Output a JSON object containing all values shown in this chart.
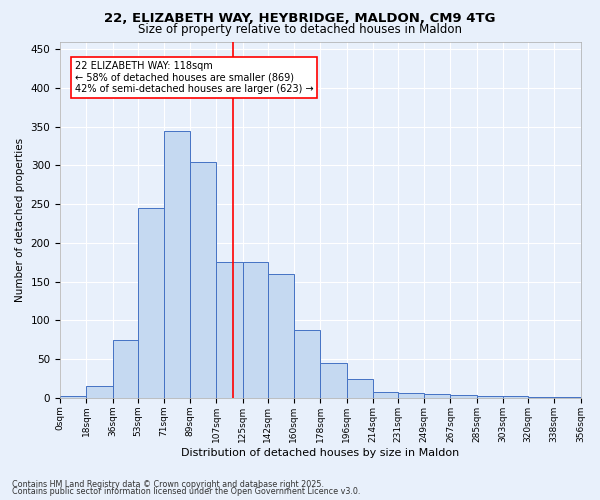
{
  "title1": "22, ELIZABETH WAY, HEYBRIDGE, MALDON, CM9 4TG",
  "title2": "Size of property relative to detached houses in Maldon",
  "xlabel": "Distribution of detached houses by size in Maldon",
  "ylabel": "Number of detached properties",
  "bins": [
    0,
    18,
    36,
    53,
    71,
    89,
    107,
    125,
    142,
    160,
    178,
    196,
    214,
    231,
    249,
    267,
    285,
    303,
    320,
    338,
    356
  ],
  "bin_labels": [
    "0sqm",
    "18sqm",
    "36sqm",
    "53sqm",
    "71sqm",
    "89sqm",
    "107sqm",
    "125sqm",
    "142sqm",
    "160sqm",
    "178sqm",
    "196sqm",
    "214sqm",
    "231sqm",
    "249sqm",
    "267sqm",
    "285sqm",
    "303sqm",
    "320sqm",
    "338sqm",
    "356sqm"
  ],
  "counts": [
    2,
    15,
    75,
    245,
    345,
    305,
    175,
    175,
    160,
    88,
    45,
    25,
    8,
    7,
    5,
    4,
    3,
    2,
    1,
    1
  ],
  "bar_color": "#c5d9f1",
  "bar_edge_color": "#4472c4",
  "vline_x": 118,
  "vline_color": "#ff0000",
  "annotation_line1": "22 ELIZABETH WAY: 118sqm",
  "annotation_line2": "← 58% of detached houses are smaller (869)",
  "annotation_line3": "42% of semi-detached houses are larger (623) →",
  "annotation_box_color": "#ffffff",
  "annotation_box_edge": "#ff0000",
  "bg_color": "#e8f0fb",
  "grid_color": "#ffffff",
  "ylim": [
    0,
    460
  ],
  "yticks": [
    0,
    50,
    100,
    150,
    200,
    250,
    300,
    350,
    400,
    450
  ],
  "footer1": "Contains HM Land Registry data © Crown copyright and database right 2025.",
  "footer2": "Contains public sector information licensed under the Open Government Licence v3.0."
}
